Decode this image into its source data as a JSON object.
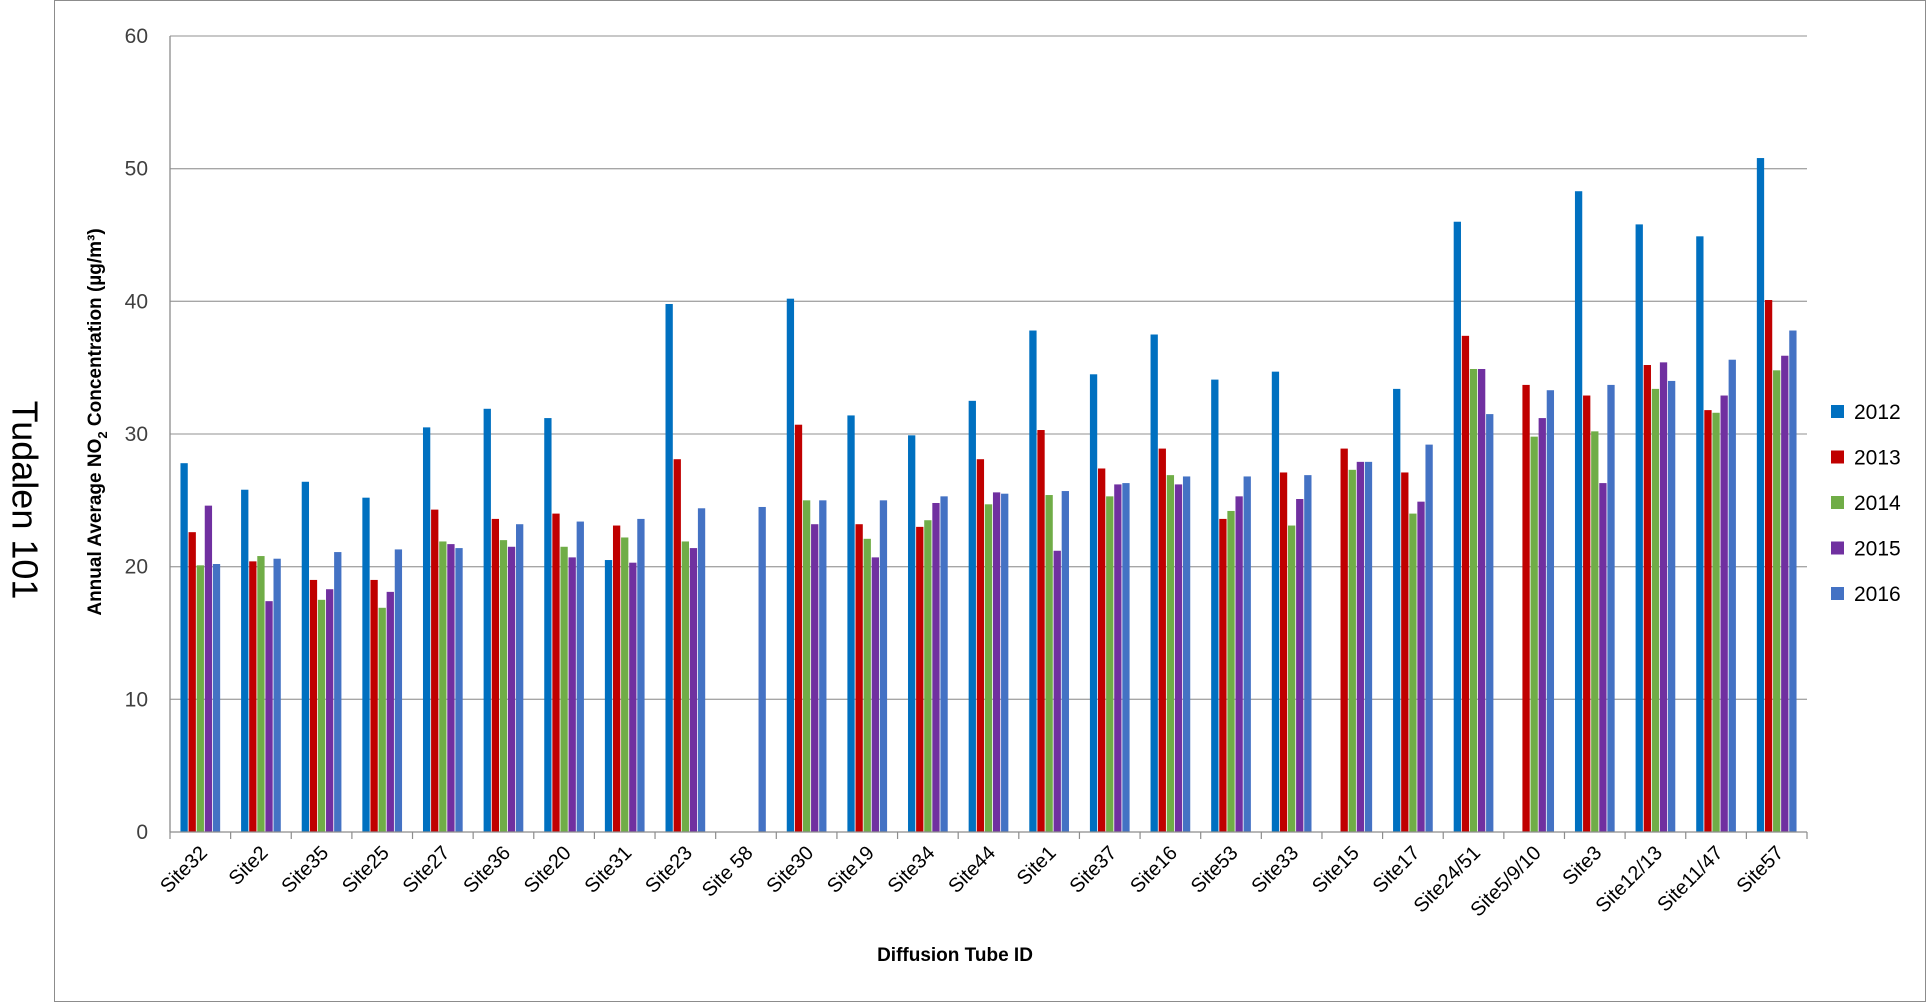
{
  "side_label": "Tudalen 101",
  "chart_data": {
    "type": "bar",
    "title": "",
    "xlabel": "Diffusion Tube ID",
    "ylabel": "Annual Average NO2 Concentration (µg/m³)",
    "ylabel_parts": {
      "before": "Annual Average NO",
      "sub": "2",
      "after": " Concentration (µg/m³)"
    },
    "ylim": [
      0,
      60
    ],
    "yticks": [
      0,
      10,
      20,
      30,
      40,
      50,
      60
    ],
    "grid": true,
    "legend_position": "right",
    "categories": [
      "Site32",
      "Site2",
      "Site35",
      "Site25",
      "Site27",
      "Site36",
      "Site20",
      "Site31",
      "Site23",
      "Site 58",
      "Site30",
      "Site19",
      "Site34",
      "Site44",
      "Site1",
      "Site37",
      "Site16",
      "Site53",
      "Site33",
      "Site15",
      "Site17",
      "Site24/51",
      "Site5/9/10",
      "Site3",
      "Site12/13",
      "Site11/47",
      "Site57"
    ],
    "series": [
      {
        "name": "2012",
        "color": "#0070C0",
        "values": [
          27.8,
          25.8,
          26.4,
          25.2,
          30.5,
          31.9,
          31.2,
          20.5,
          39.8,
          null,
          40.2,
          31.4,
          29.9,
          32.5,
          37.8,
          34.5,
          37.5,
          34.1,
          34.7,
          null,
          33.4,
          46.0,
          null,
          48.3,
          45.8,
          44.9,
          50.8
        ]
      },
      {
        "name": "2013",
        "color": "#C00000",
        "values": [
          22.6,
          20.4,
          19.0,
          19.0,
          24.3,
          23.6,
          24.0,
          23.1,
          28.1,
          null,
          30.7,
          23.2,
          23.0,
          28.1,
          30.3,
          27.4,
          28.9,
          23.6,
          27.1,
          28.9,
          27.1,
          37.4,
          33.7,
          32.9,
          35.2,
          31.8,
          40.1
        ]
      },
      {
        "name": "2014",
        "color": "#70AD47",
        "values": [
          20.1,
          20.8,
          17.5,
          16.9,
          21.9,
          22.0,
          21.5,
          22.2,
          21.9,
          null,
          25.0,
          22.1,
          23.5,
          24.7,
          25.4,
          25.3,
          26.9,
          24.2,
          23.1,
          27.3,
          24.0,
          34.9,
          29.8,
          30.2,
          33.4,
          31.6,
          34.8
        ]
      },
      {
        "name": "2015",
        "color": "#7030A0",
        "values": [
          24.6,
          17.4,
          18.3,
          18.1,
          21.7,
          21.5,
          20.7,
          20.3,
          21.4,
          null,
          23.2,
          20.7,
          24.8,
          25.6,
          21.2,
          26.2,
          26.2,
          25.3,
          25.1,
          27.9,
          24.9,
          34.9,
          31.2,
          26.3,
          35.4,
          32.9,
          35.9
        ]
      },
      {
        "name": "2016",
        "color": "#4472C4",
        "values": [
          20.2,
          20.6,
          21.1,
          21.3,
          21.4,
          23.2,
          23.4,
          23.6,
          24.4,
          24.5,
          25.0,
          25.0,
          25.3,
          25.5,
          25.7,
          26.3,
          26.8,
          26.8,
          26.9,
          27.9,
          29.2,
          31.5,
          33.3,
          33.7,
          34.0,
          35.6,
          37.8
        ]
      }
    ]
  }
}
